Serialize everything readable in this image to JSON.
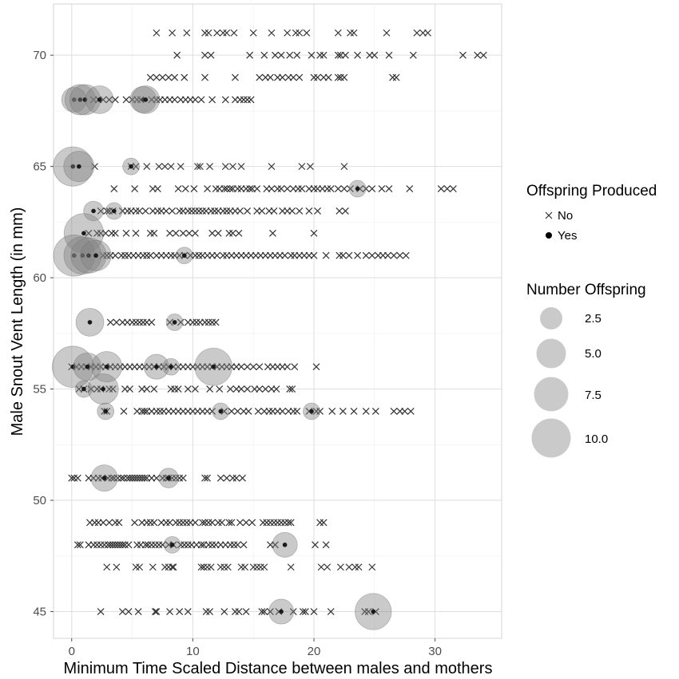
{
  "chart_data": {
    "type": "scatter",
    "xlabel": "Minimum Time Scaled Distance between males and mothers",
    "ylabel": "Male Snout Vent Length (in mm)",
    "xlim": [
      -1.5,
      35.5
    ],
    "ylim": [
      43.8,
      72.3
    ],
    "x_ticks": [
      0,
      10,
      20,
      30
    ],
    "x_tick_labels": [
      "0",
      "10",
      "20",
      "30"
    ],
    "y_ticks": [
      45,
      50,
      55,
      60,
      65,
      70
    ],
    "y_tick_labels": [
      "45",
      "50",
      "55",
      "60",
      "65",
      "70"
    ],
    "grid": true,
    "legend_position": "right",
    "legends": {
      "shape": {
        "title": "Offspring Produced",
        "items": [
          {
            "label": "No",
            "marker": "x"
          },
          {
            "label": "Yes",
            "marker": "dot"
          }
        ]
      },
      "size": {
        "title": "Number Offspring",
        "items": [
          {
            "label": "2.5",
            "value": 2.5
          },
          {
            "label": "5.0",
            "value": 5.0
          },
          {
            "label": "7.5",
            "value": 7.5
          },
          {
            "label": "10.0",
            "value": 10.0
          }
        ]
      }
    },
    "series": [
      {
        "name": "No",
        "marker": "x",
        "points": [
          {
            "y": 71,
            "x": [
              7,
              8.3,
              9.5,
              11,
              11.3,
              12,
              12.5,
              12.8,
              13.4,
              15,
              16.5,
              17.8,
              18.5,
              18.8,
              19.4,
              22,
              23,
              23.3,
              26,
              28.5,
              29,
              29.4
            ]
          },
          {
            "y": 70,
            "x": [
              8.7,
              11,
              11.5,
              14.7,
              15.9,
              16.8,
              17.3,
              18,
              18.6,
              19.8,
              20.5,
              20.8,
              22,
              22.2,
              22.6,
              23.6,
              24.6,
              25,
              26.2,
              28.2,
              32.3,
              33.5,
              34
            ]
          },
          {
            "y": 69,
            "x": [
              6.5,
              7,
              7.5,
              8,
              8.5,
              9.3,
              11,
              13.5,
              15.5,
              16,
              16.4,
              17,
              17.4,
              17.9,
              18.3,
              18.8,
              20,
              20.3,
              20.8,
              21.2,
              22,
              22.2,
              22.5,
              26.5,
              26.8
            ]
          },
          {
            "y": 68,
            "x": [
              1.8,
              2.2,
              2.6,
              3.1,
              3.6,
              4.5,
              5,
              5.4,
              5.7,
              6.6,
              7,
              7.3,
              7.7,
              8.1,
              8.5,
              9,
              9.4,
              9.8,
              10.2,
              10.7,
              11.6,
              12.7,
              13.5,
              13.9,
              14.2,
              14.5,
              14.8
            ]
          },
          {
            "y": 65,
            "x": [
              1.9,
              4.9,
              5.3,
              6.2,
              7.2,
              7.7,
              8.2,
              9,
              10.4,
              10.6,
              11.4,
              12.7,
              13.3,
              14,
              16.5,
              19,
              19.7,
              22.5
            ]
          },
          {
            "y": 64,
            "x": [
              3.5,
              5.2,
              6.7,
              7.1,
              8.8,
              9.4,
              10.1,
              11.2,
              11.9,
              12.2,
              12.6,
              12.8,
              13.1,
              13.3,
              13.7,
              14,
              14.4,
              14.7,
              14.9,
              15.3,
              16.1,
              16.5,
              17,
              17.3,
              17.8,
              18.3,
              18.7,
              19,
              19.6,
              20,
              20.3,
              20.7,
              21.1,
              21.4,
              22,
              22.5,
              23,
              23.8,
              24.3,
              24.8,
              25.6,
              26.2,
              27.9,
              30.5,
              31,
              31.5
            ]
          },
          {
            "y": 63,
            "x": [
              2.4,
              2.9,
              3.1,
              3.4,
              4.2,
              4.6,
              4.9,
              5.3,
              5.6,
              6.1,
              6.7,
              7.1,
              7.4,
              7.8,
              8.3,
              8.9,
              9.2,
              9.6,
              9.9,
              10.2,
              10.5,
              10.8,
              11.1,
              11.5,
              11.8,
              12.1,
              12.5,
              12.8,
              13.1,
              13.5,
              13.9,
              14.5,
              15.3,
              15.7,
              16.3,
              16.7,
              17.4,
              17.8,
              18.2,
              18.8,
              19.6,
              20.3,
              22.1,
              22.6
            ]
          },
          {
            "y": 62,
            "x": [
              1.4,
              2.1,
              2.4,
              2.8,
              3.3,
              3.6,
              4.5,
              5.3,
              6.5,
              6.8,
              8.1,
              8.6,
              9.2,
              9.7,
              10.2,
              11.6,
              12.1,
              13,
              13.3,
              13.8,
              16.6,
              20
            ]
          },
          {
            "y": 61,
            "x": [
              2.6,
              2.9,
              3.2,
              3.6,
              4.1,
              4.4,
              4.7,
              5.1,
              5.5,
              5.9,
              6.2,
              6.5,
              7,
              7.4,
              7.8,
              8.2,
              8.5,
              8.9,
              9.3,
              9.8,
              10.2,
              10.5,
              10.8,
              11.2,
              11.6,
              12,
              12.5,
              12.8,
              13.2,
              13.6,
              14,
              14.4,
              14.8,
              15.2,
              15.6,
              16,
              16.4,
              16.8,
              17.2,
              17.6,
              18.1,
              18.4,
              18.8,
              19.2,
              19.6,
              20,
              21,
              22.1,
              22.4,
              22.9,
              23.6,
              24.3,
              24.8,
              25.3,
              25.7,
              26.1,
              26.6,
              27.1,
              27.6
            ]
          },
          {
            "y": 58,
            "x": [
              3.2,
              3.7,
              4.2,
              4.6,
              5,
              5.3,
              5.6,
              5.9,
              6.2,
              6.6,
              8.1,
              9,
              9.6,
              10,
              10.3,
              10.6,
              11,
              11.3,
              11.6,
              11.9
            ]
          },
          {
            "y": 56,
            "x": [
              0,
              0.4,
              0.8,
              1.2,
              1.6,
              2,
              2.4,
              2.8,
              3.2,
              3.6,
              4,
              4.4,
              4.8,
              5.2,
              5.6,
              6,
              6.4,
              6.8,
              7.2,
              7.6,
              8,
              8.4,
              8.8,
              9.2,
              9.6,
              10,
              10.4,
              10.8,
              11.2,
              11.6,
              12,
              12.4,
              12.8,
              13.2,
              13.6,
              14,
              14.5,
              15,
              15.5,
              16.2,
              16.6,
              17,
              17.4,
              17.8,
              18.4,
              20.2
            ]
          },
          {
            "y": 55,
            "x": [
              0.6,
              1,
              1.6,
              2.1,
              2.4,
              3.1,
              3.4,
              4.4,
              4.8,
              5.8,
              6.2,
              6.8,
              8.2,
              8.5,
              8.8,
              9.6,
              10.2,
              11.4,
              12.2,
              13.1,
              13.6,
              14,
              14.5,
              15.1,
              15.5,
              16,
              16.5,
              16.9,
              18,
              18.2
            ]
          },
          {
            "y": 54,
            "x": [
              2.7,
              2.9,
              4.3,
              5.4,
              5.8,
              6,
              6.2,
              6.6,
              7,
              7.3,
              7.6,
              8,
              8.4,
              8.8,
              9.2,
              9.6,
              10,
              10.4,
              10.8,
              11.2,
              11.6,
              12.6,
              13.2,
              13.7,
              14.2,
              14.6,
              15.4,
              15.9,
              16.3,
              16.6,
              17,
              17.4,
              17.9,
              18.3,
              18.6,
              19.6,
              20.2,
              20.5,
              21.5,
              22.4,
              23.3,
              24.3,
              25.1,
              26.6,
              27.1,
              27.5,
              28
            ]
          },
          {
            "y": 51,
            "x": [
              0,
              0.2,
              0.5,
              1.4,
              1.8,
              2.2,
              2.5,
              3,
              3.3,
              3.5,
              3.8,
              4.1,
              4.3,
              4.6,
              4.8,
              5,
              5.2,
              5.4,
              5.6,
              5.8,
              6,
              6.2,
              6.6,
              7,
              7.5,
              7.8,
              8,
              8.3,
              8.6,
              8.9,
              9.2,
              11,
              11.2,
              12.3,
              12.8,
              13.3,
              13.6,
              14.1
            ]
          },
          {
            "y": 49,
            "x": [
              1.5,
              1.9,
              2.2,
              2.6,
              3.1,
              3.6,
              3.9,
              5.2,
              5.8,
              6.2,
              6.5,
              6.8,
              7.4,
              7.8,
              8.1,
              8.6,
              8.9,
              9.2,
              9.5,
              9.8,
              10.2,
              10.8,
              11,
              11.3,
              11.6,
              12.1,
              12.4,
              13,
              13.2,
              13.9,
              14.4,
              14.9,
              15.8,
              16.1,
              16.4,
              16.7,
              17,
              17.3,
              17.6,
              17.9,
              18.1,
              20.5,
              20.8
            ]
          },
          {
            "y": 48,
            "x": [
              0.5,
              0.7,
              1.4,
              1.8,
              2.1,
              2.4,
              2.7,
              3,
              3.2,
              3.4,
              3.6,
              3.8,
              4,
              4.2,
              4.4,
              4.7,
              5.4,
              5.7,
              6.1,
              6.3,
              6.6,
              6.9,
              7.2,
              7.5,
              8,
              8.4,
              9,
              9.3,
              9.6,
              9.9,
              10.3,
              10.7,
              10.9,
              11.3,
              11.6,
              11.9,
              12.3,
              12.7,
              13.1,
              13.4,
              13.7,
              14.2,
              16.4,
              16.8,
              20.1,
              21
            ]
          },
          {
            "y": 47,
            "x": [
              2.9,
              3.7,
              5.3,
              5.6,
              6.7,
              7.7,
              8,
              8.3,
              8.4,
              10.7,
              10.9,
              11.2,
              11.5,
              12.3,
              12.6,
              12.9,
              14,
              14.3,
              15,
              15.3,
              15.6,
              15.9,
              18.1,
              20.6,
              21.1,
              22.2,
              22.9,
              23.4,
              23.7,
              24.8
            ]
          },
          {
            "y": 45,
            "x": [
              2.4,
              4.2,
              4.7,
              5.5,
              6.9,
              7,
              8.1,
              8.9,
              9.6,
              11.1,
              11.4,
              12.6,
              13.5,
              13.8,
              14.4,
              15.7,
              15.9,
              16.4,
              17.1,
              18.3,
              19.1,
              19.3,
              20,
              21.4,
              24.2,
              24.5,
              25.1
            ]
          }
        ]
      },
      {
        "name": "Yes",
        "marker": "bubble",
        "points": [
          {
            "x": 0.2,
            "y": 68,
            "n": 4
          },
          {
            "x": 0.7,
            "y": 68,
            "n": 6
          },
          {
            "x": 1.1,
            "y": 68,
            "n": 6
          },
          {
            "x": 2.3,
            "y": 68,
            "n": 5
          },
          {
            "x": 5.9,
            "y": 68,
            "n": 4.5
          },
          {
            "x": 6.1,
            "y": 68,
            "n": 5
          },
          {
            "x": 0.1,
            "y": 65,
            "n": 10
          },
          {
            "x": 0.6,
            "y": 65,
            "n": 6
          },
          {
            "x": 4.9,
            "y": 65,
            "n": 1.8
          },
          {
            "x": 23.6,
            "y": 64,
            "n": 1.8
          },
          {
            "x": 1.8,
            "y": 63,
            "n": 2.5
          },
          {
            "x": 3.5,
            "y": 63,
            "n": 1.8
          },
          {
            "x": 1,
            "y": 62,
            "n": 10
          },
          {
            "x": 0.2,
            "y": 61,
            "n": 11
          },
          {
            "x": 0.9,
            "y": 61,
            "n": 9
          },
          {
            "x": 1.4,
            "y": 61,
            "n": 8
          },
          {
            "x": 2,
            "y": 61,
            "n": 6
          },
          {
            "x": 9.3,
            "y": 61,
            "n": 1.8
          },
          {
            "x": 1.5,
            "y": 58,
            "n": 5
          },
          {
            "x": 8.5,
            "y": 58,
            "n": 1.8
          },
          {
            "x": 0.1,
            "y": 56,
            "n": 11
          },
          {
            "x": 1.3,
            "y": 56,
            "n": 5
          },
          {
            "x": 2.9,
            "y": 56,
            "n": 6
          },
          {
            "x": 7,
            "y": 56,
            "n": 4
          },
          {
            "x": 8.2,
            "y": 56,
            "n": 1.8
          },
          {
            "x": 11.7,
            "y": 56,
            "n": 9
          },
          {
            "x": 1,
            "y": 55,
            "n": 1.8
          },
          {
            "x": 2.6,
            "y": 55,
            "n": 6
          },
          {
            "x": 2.8,
            "y": 54,
            "n": 1.8
          },
          {
            "x": 12.3,
            "y": 54,
            "n": 1.8
          },
          {
            "x": 19.8,
            "y": 54,
            "n": 1.8
          },
          {
            "x": 2.7,
            "y": 51,
            "n": 4.5
          },
          {
            "x": 8,
            "y": 51,
            "n": 2.5
          },
          {
            "x": 8.3,
            "y": 48,
            "n": 1.8
          },
          {
            "x": 17.6,
            "y": 48,
            "n": 4
          },
          {
            "x": 17.3,
            "y": 45,
            "n": 4
          },
          {
            "x": 24.9,
            "y": 45,
            "n": 8.5
          }
        ]
      }
    ]
  }
}
